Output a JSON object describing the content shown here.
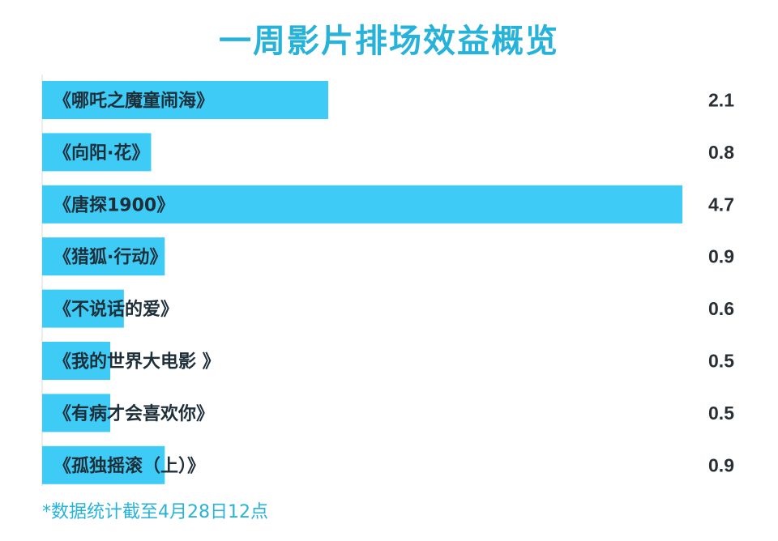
{
  "title": "一周影片排场效益概览",
  "footnote": "*数据统计截至4月28日12点",
  "colors": {
    "bar": "#3ecbf6",
    "title": "#27b3d9",
    "label": "#1f2f3a",
    "value": "#2a2f34",
    "axis": "#d9d9d9"
  },
  "chart_data": {
    "type": "bar",
    "orientation": "horizontal",
    "title": "一周影片排场效益概览",
    "categories": [
      "《哪吒之魔童闹海》",
      "《向阳·花》",
      "《唐探1900》",
      "《猎狐·行动》",
      "《不说话的爱》",
      "《我的世界大电影 》",
      "《有病才会喜欢你》",
      "《孤独摇滚（上）》"
    ],
    "values": [
      2.1,
      0.8,
      4.7,
      0.9,
      0.6,
      0.5,
      0.5,
      0.9
    ],
    "value_labels": [
      "2.1",
      "0.8",
      "4.7",
      "0.9",
      "0.6",
      "0.5",
      "0.5",
      "0.9"
    ],
    "xlim": [
      0,
      4.7
    ],
    "grid": false,
    "xlabel": "",
    "ylabel": ""
  }
}
